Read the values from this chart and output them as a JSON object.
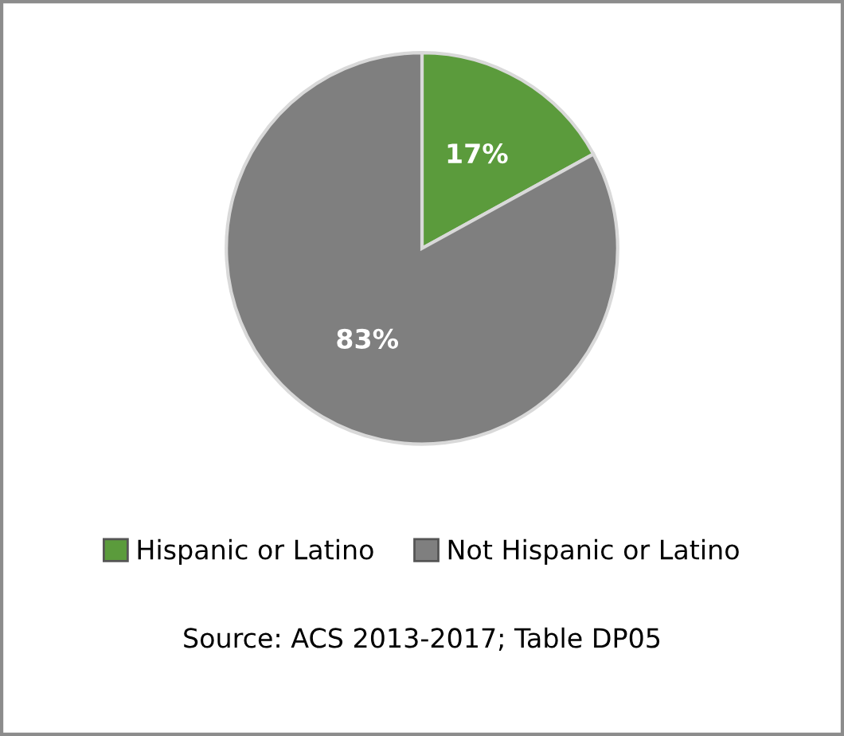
{
  "chart_data": {
    "type": "pie",
    "categories": [
      "Hispanic or Latino",
      "Not Hispanic or Latino"
    ],
    "values": [
      17,
      83
    ],
    "colors": [
      "#5b9b3c",
      "#7f7f7f"
    ],
    "value_labels": [
      "17%",
      "83%"
    ],
    "legend": "bottom",
    "annotations": [
      "Source: ACS 2013-2017; Table DP05"
    ]
  }
}
